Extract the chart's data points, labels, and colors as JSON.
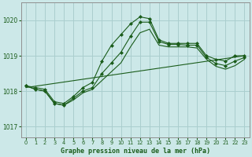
{
  "title": "Graphe pression niveau de la mer (hPa)",
  "bg_color": "#cce8e8",
  "grid_color": "#aacece",
  "line_color": "#1a5c1a",
  "xlim": [
    -0.5,
    23.5
  ],
  "ylim": [
    1016.7,
    1020.5
  ],
  "yticks": [
    1017,
    1018,
    1019,
    1020
  ],
  "xticks": [
    0,
    1,
    2,
    3,
    4,
    5,
    6,
    7,
    8,
    9,
    10,
    11,
    12,
    13,
    14,
    15,
    16,
    17,
    18,
    19,
    20,
    21,
    22,
    23
  ],
  "series": [
    {
      "x": [
        0,
        1,
        2,
        3,
        4,
        5,
        6,
        7,
        8,
        9,
        10,
        11,
        12,
        13,
        14,
        15,
        16,
        17,
        18,
        19,
        20,
        21,
        22,
        23
      ],
      "y": [
        1018.15,
        1018.1,
        1018.05,
        1017.7,
        1017.65,
        1017.85,
        1018.1,
        1018.25,
        1018.85,
        1019.3,
        1019.6,
        1019.9,
        1020.1,
        1020.05,
        1019.45,
        1019.35,
        1019.35,
        1019.35,
        1019.35,
        1019.0,
        1018.9,
        1018.85,
        1019.0,
        1019.0
      ],
      "has_markers": true
    },
    {
      "x": [
        0,
        1,
        2,
        3,
        4,
        5,
        6,
        7,
        8,
        9,
        10,
        11,
        12,
        13,
        14,
        15,
        16,
        17,
        18,
        19,
        20,
        21,
        22,
        23
      ],
      "y": [
        1018.15,
        1018.05,
        1018.0,
        1017.65,
        1017.6,
        1017.8,
        1018.0,
        1018.1,
        1018.5,
        1018.8,
        1019.1,
        1019.55,
        1019.95,
        1019.95,
        1019.4,
        1019.32,
        1019.32,
        1019.3,
        1019.3,
        1018.95,
        1018.78,
        1018.72,
        1018.85,
        1018.95
      ],
      "has_markers": true
    },
    {
      "x": [
        0,
        1,
        2,
        3,
        4,
        5,
        6,
        7,
        8,
        9,
        10,
        11,
        12,
        13,
        14,
        15,
        16,
        17,
        18,
        19,
        20,
        21,
        22,
        23
      ],
      "y": [
        1018.15,
        1018.05,
        1018.0,
        1017.65,
        1017.6,
        1017.75,
        1017.95,
        1018.05,
        1018.3,
        1018.55,
        1018.8,
        1019.25,
        1019.65,
        1019.75,
        1019.3,
        1019.25,
        1019.25,
        1019.25,
        1019.22,
        1018.9,
        1018.7,
        1018.62,
        1018.72,
        1018.9
      ],
      "has_markers": false
    },
    {
      "x": [
        0,
        23
      ],
      "y": [
        1018.1,
        1019.0
      ],
      "has_markers": false
    }
  ]
}
